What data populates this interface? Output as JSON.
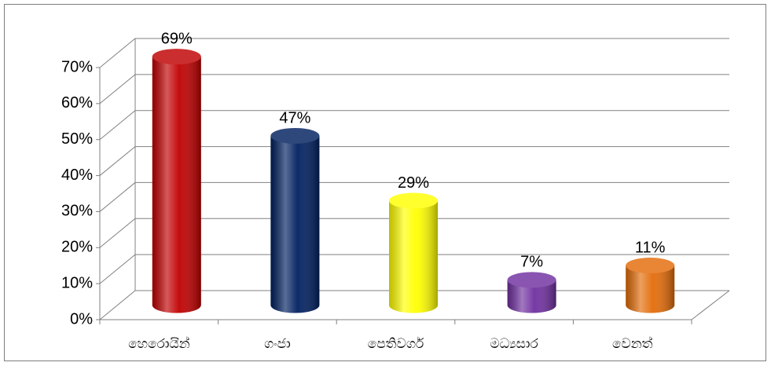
{
  "chart_data": {
    "type": "bar",
    "categories": [
      "හෙරොයින්",
      "ගංජා",
      "පෙතිවර්ග",
      "මධ්‍යසාර",
      "වෙනත්"
    ],
    "values": [
      69,
      47,
      29,
      7,
      11
    ],
    "value_labels": [
      "69%",
      "47%",
      "29%",
      "7%",
      "11%"
    ],
    "colors": [
      "#c00000",
      "#002060",
      "#ffff00",
      "#7030a0",
      "#e36c09"
    ],
    "ylim": [
      0,
      70
    ],
    "yticks": [
      {
        "value": 0,
        "label": "0%"
      },
      {
        "value": 10,
        "label": "10%"
      },
      {
        "value": 20,
        "label": "20%"
      },
      {
        "value": 30,
        "label": "30%"
      },
      {
        "value": 40,
        "label": "40%"
      },
      {
        "value": 50,
        "label": "50%"
      },
      {
        "value": 60,
        "label": "60%"
      },
      {
        "value": 70,
        "label": "70%"
      }
    ],
    "grid": true
  }
}
